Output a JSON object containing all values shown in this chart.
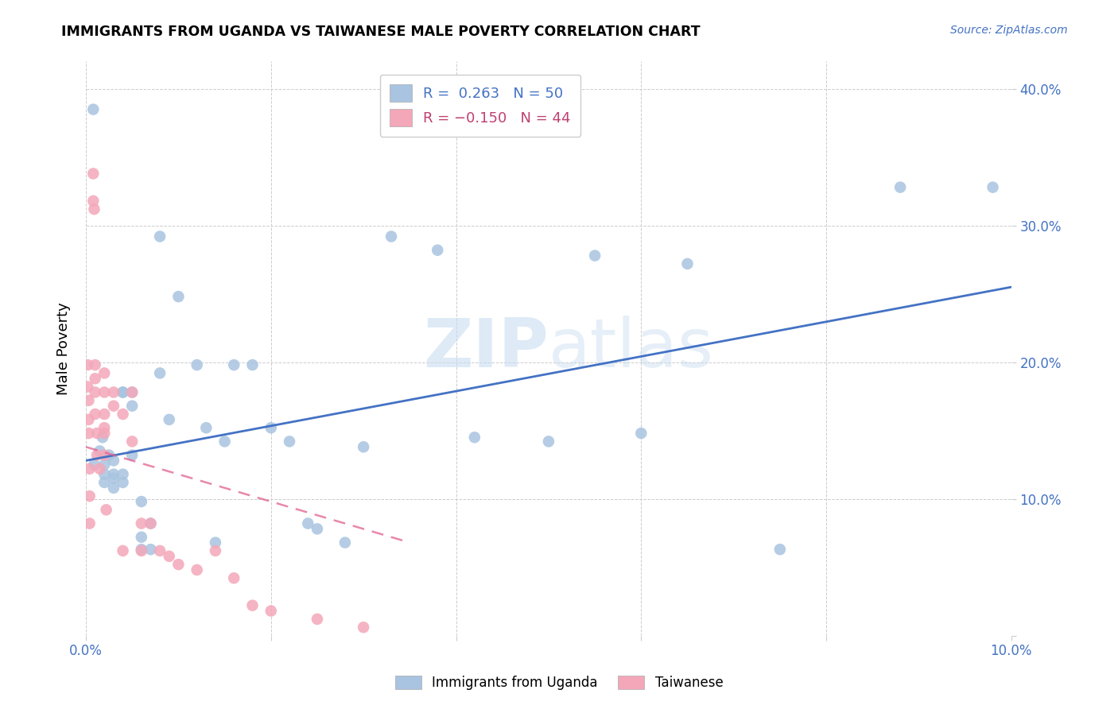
{
  "title": "IMMIGRANTS FROM UGANDA VS TAIWANESE MALE POVERTY CORRELATION CHART",
  "source": "Source: ZipAtlas.com",
  "ylabel": "Male Poverty",
  "xlim": [
    0.0,
    0.1
  ],
  "ylim": [
    0.0,
    0.42
  ],
  "uganda_color": "#a8c4e0",
  "taiwanese_color": "#f4a7b9",
  "uganda_R": 0.263,
  "uganda_N": 50,
  "taiwanese_R": -0.15,
  "taiwanese_N": 44,
  "uganda_line_color": "#4472c4",
  "taiwanese_line_color": "#e06090",
  "watermark_zip": "ZIP",
  "watermark_atlas": "atlas",
  "legend_label_uganda": "Immigrants from Uganda",
  "legend_label_taiwanese": "Taiwanese",
  "uganda_x": [
    0.0008,
    0.0009,
    0.0015,
    0.0018,
    0.002,
    0.002,
    0.002,
    0.0025,
    0.003,
    0.003,
    0.003,
    0.003,
    0.004,
    0.004,
    0.004,
    0.004,
    0.005,
    0.005,
    0.005,
    0.006,
    0.006,
    0.006,
    0.007,
    0.007,
    0.008,
    0.008,
    0.009,
    0.01,
    0.012,
    0.013,
    0.014,
    0.015,
    0.016,
    0.018,
    0.02,
    0.022,
    0.024,
    0.025,
    0.028,
    0.03,
    0.033,
    0.038,
    0.042,
    0.05,
    0.055,
    0.06,
    0.065,
    0.075,
    0.088,
    0.098
  ],
  "uganda_y": [
    0.385,
    0.125,
    0.135,
    0.145,
    0.125,
    0.118,
    0.112,
    0.132,
    0.128,
    0.108,
    0.118,
    0.115,
    0.178,
    0.178,
    0.118,
    0.112,
    0.132,
    0.178,
    0.168,
    0.063,
    0.072,
    0.098,
    0.082,
    0.063,
    0.292,
    0.192,
    0.158,
    0.248,
    0.198,
    0.152,
    0.068,
    0.142,
    0.198,
    0.198,
    0.152,
    0.142,
    0.082,
    0.078,
    0.068,
    0.138,
    0.292,
    0.282,
    0.145,
    0.142,
    0.278,
    0.148,
    0.272,
    0.063,
    0.328,
    0.328
  ],
  "taiwanese_x": [
    0.0002,
    0.0002,
    0.0003,
    0.0003,
    0.0003,
    0.0004,
    0.0004,
    0.0004,
    0.0008,
    0.0008,
    0.0009,
    0.001,
    0.001,
    0.001,
    0.001,
    0.0012,
    0.0012,
    0.0015,
    0.002,
    0.002,
    0.002,
    0.002,
    0.002,
    0.002,
    0.0022,
    0.003,
    0.003,
    0.004,
    0.004,
    0.005,
    0.005,
    0.006,
    0.006,
    0.007,
    0.008,
    0.009,
    0.01,
    0.012,
    0.014,
    0.016,
    0.018,
    0.02,
    0.025,
    0.03
  ],
  "taiwanese_y": [
    0.198,
    0.182,
    0.172,
    0.158,
    0.148,
    0.122,
    0.102,
    0.082,
    0.338,
    0.318,
    0.312,
    0.198,
    0.188,
    0.178,
    0.162,
    0.148,
    0.132,
    0.122,
    0.192,
    0.178,
    0.162,
    0.152,
    0.148,
    0.132,
    0.092,
    0.178,
    0.168,
    0.162,
    0.062,
    0.178,
    0.142,
    0.082,
    0.062,
    0.082,
    0.062,
    0.058,
    0.052,
    0.048,
    0.062,
    0.042,
    0.022,
    0.018,
    0.012,
    0.006
  ],
  "uganda_line_x": [
    0.0,
    0.1
  ],
  "uganda_line_y": [
    0.128,
    0.255
  ],
  "taiwanese_line_x": [
    0.0,
    0.035
  ],
  "taiwanese_line_y": [
    0.138,
    0.068
  ]
}
